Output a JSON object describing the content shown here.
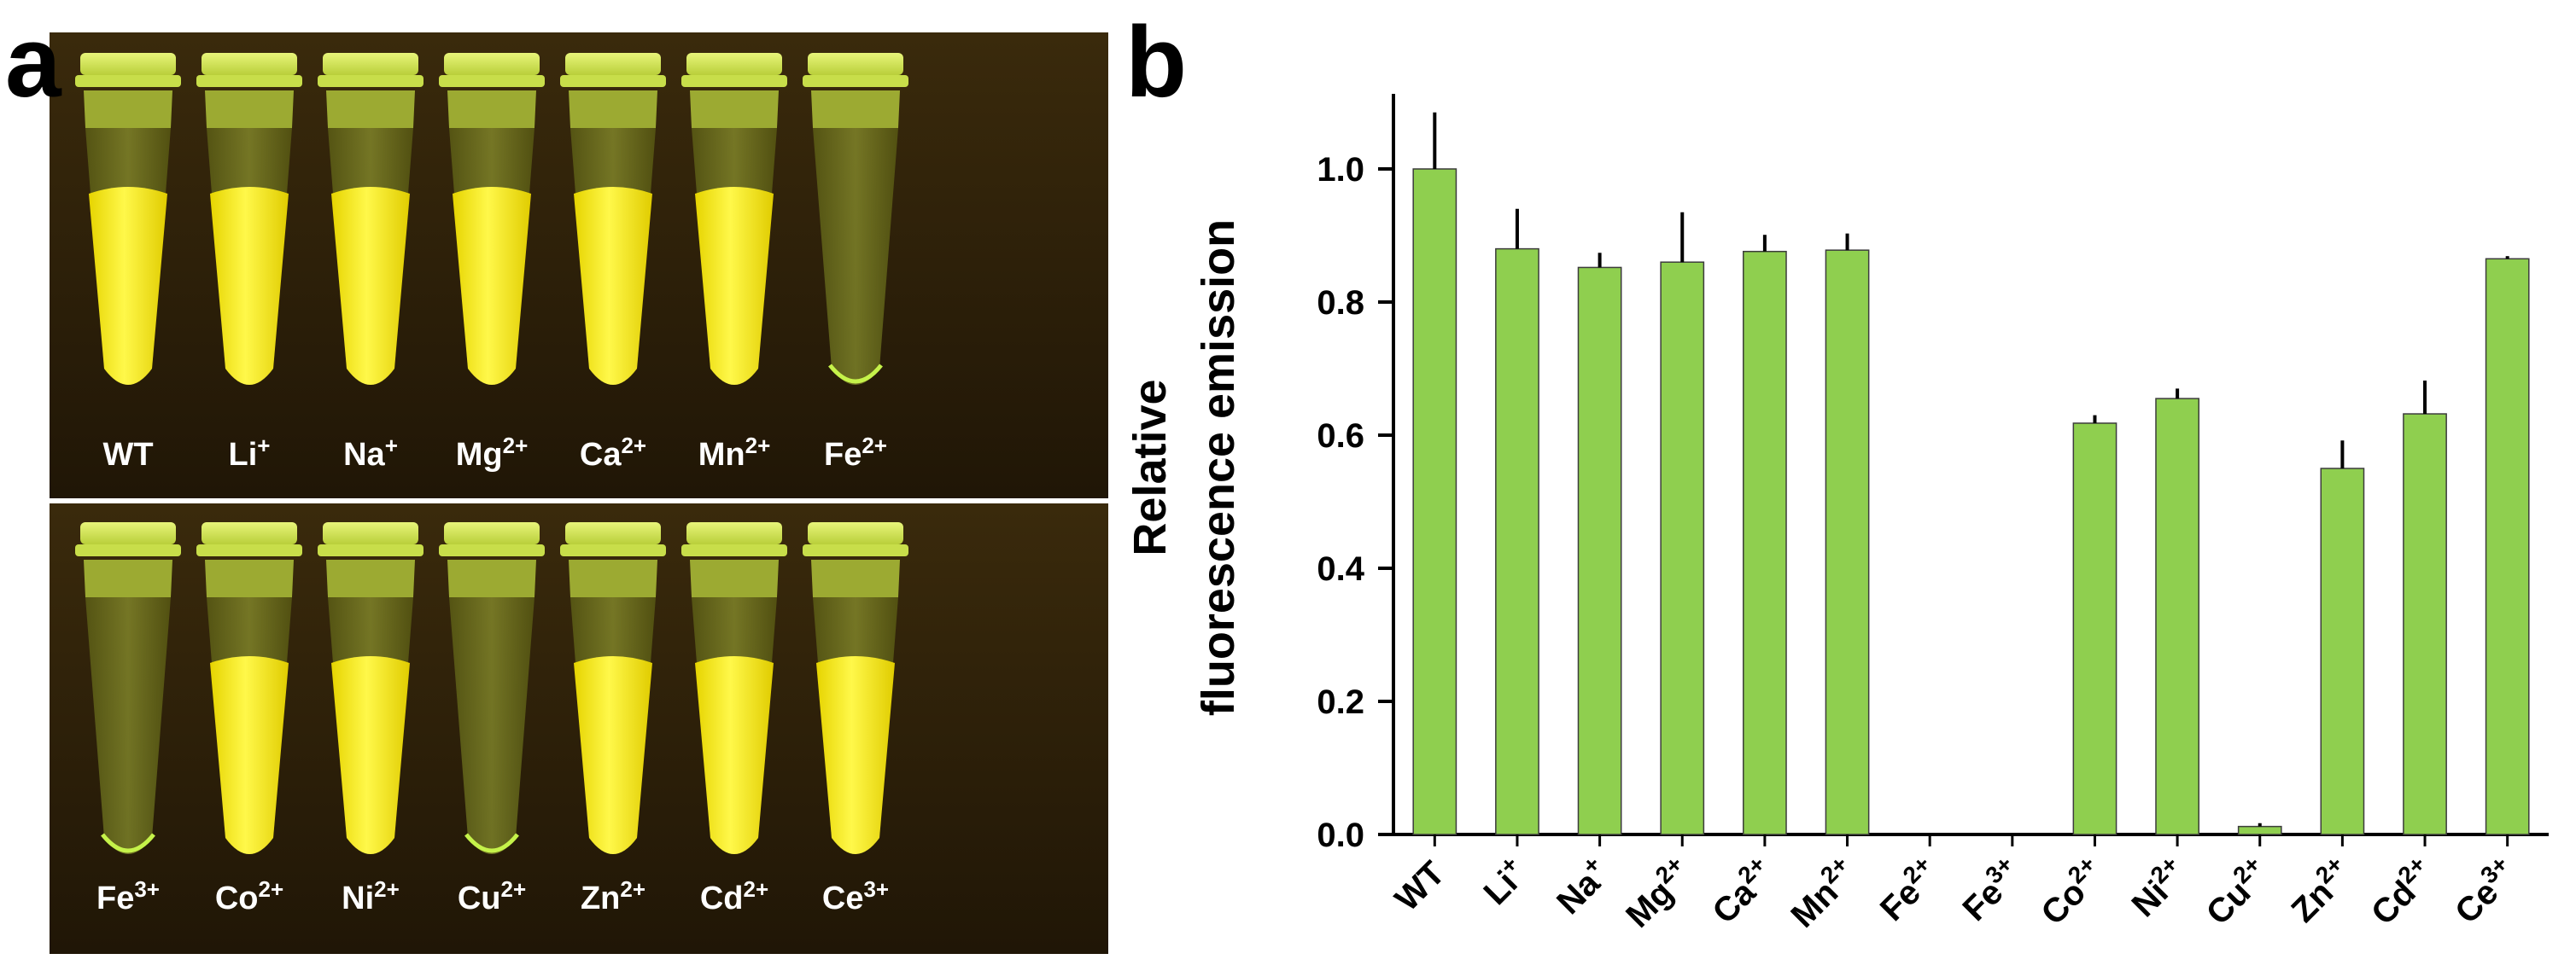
{
  "panels": {
    "a": "a",
    "b": "b"
  },
  "photo": {
    "top_row": [
      {
        "base": "WT",
        "sup": "",
        "fluorescent": true
      },
      {
        "base": "Li",
        "sup": "+",
        "fluorescent": true
      },
      {
        "base": "Na",
        "sup": "+",
        "fluorescent": true
      },
      {
        "base": "Mg",
        "sup": "2+",
        "fluorescent": true
      },
      {
        "base": "Ca",
        "sup": "2+",
        "fluorescent": true
      },
      {
        "base": "Mn",
        "sup": "2+",
        "fluorescent": true
      },
      {
        "base": "Fe",
        "sup": "2+",
        "fluorescent": false
      }
    ],
    "bottom_row": [
      {
        "base": "Fe",
        "sup": "3+",
        "fluorescent": false
      },
      {
        "base": "Co",
        "sup": "2+",
        "fluorescent": true
      },
      {
        "base": "Ni",
        "sup": "2+",
        "fluorescent": true
      },
      {
        "base": "Cu",
        "sup": "2+",
        "fluorescent": false
      },
      {
        "base": "Zn",
        "sup": "2+",
        "fluorescent": true
      },
      {
        "base": "Cd",
        "sup": "2+",
        "fluorescent": true
      },
      {
        "base": "Ce",
        "sup": "3+",
        "fluorescent": true
      }
    ],
    "colors": {
      "background": "#2a1d08",
      "fluorescence": "#f7ee10",
      "tube": "#d9ee70"
    }
  },
  "chart_data": {
    "type": "bar",
    "ylabel_lines": [
      "Relative",
      "fluorescence emission"
    ],
    "xlabel": "",
    "ylim": [
      0,
      1.1
    ],
    "yticks": [
      "0.0",
      "0.2",
      "0.4",
      "0.6",
      "0.8",
      "1.0"
    ],
    "categories": [
      {
        "base": "WT",
        "sup": ""
      },
      {
        "base": "Li",
        "sup": "+"
      },
      {
        "base": "Na",
        "sup": "+"
      },
      {
        "base": "Mg",
        "sup": "2+"
      },
      {
        "base": "Ca",
        "sup": "2+"
      },
      {
        "base": "Mn",
        "sup": "2+"
      },
      {
        "base": "Fe",
        "sup": "2+"
      },
      {
        "base": "Fe",
        "sup": "3+"
      },
      {
        "base": "Co",
        "sup": "2+"
      },
      {
        "base": "Ni",
        "sup": "2+"
      },
      {
        "base": "Cu",
        "sup": "2+"
      },
      {
        "base": "Zn",
        "sup": "2+"
      },
      {
        "base": "Cd",
        "sup": "2+"
      },
      {
        "base": "Ce",
        "sup": "3+"
      }
    ],
    "values": [
      1.0,
      0.88,
      0.852,
      0.86,
      0.876,
      0.878,
      0.0,
      0.0,
      0.618,
      0.655,
      0.012,
      0.55,
      0.632,
      0.865
    ],
    "errors": [
      0.085,
      0.06,
      0.022,
      0.075,
      0.025,
      0.025,
      0.0,
      0.0,
      0.012,
      0.015,
      0.005,
      0.042,
      0.05,
      0.004
    ],
    "bar_color": "#8fcf4f",
    "grid": false
  }
}
